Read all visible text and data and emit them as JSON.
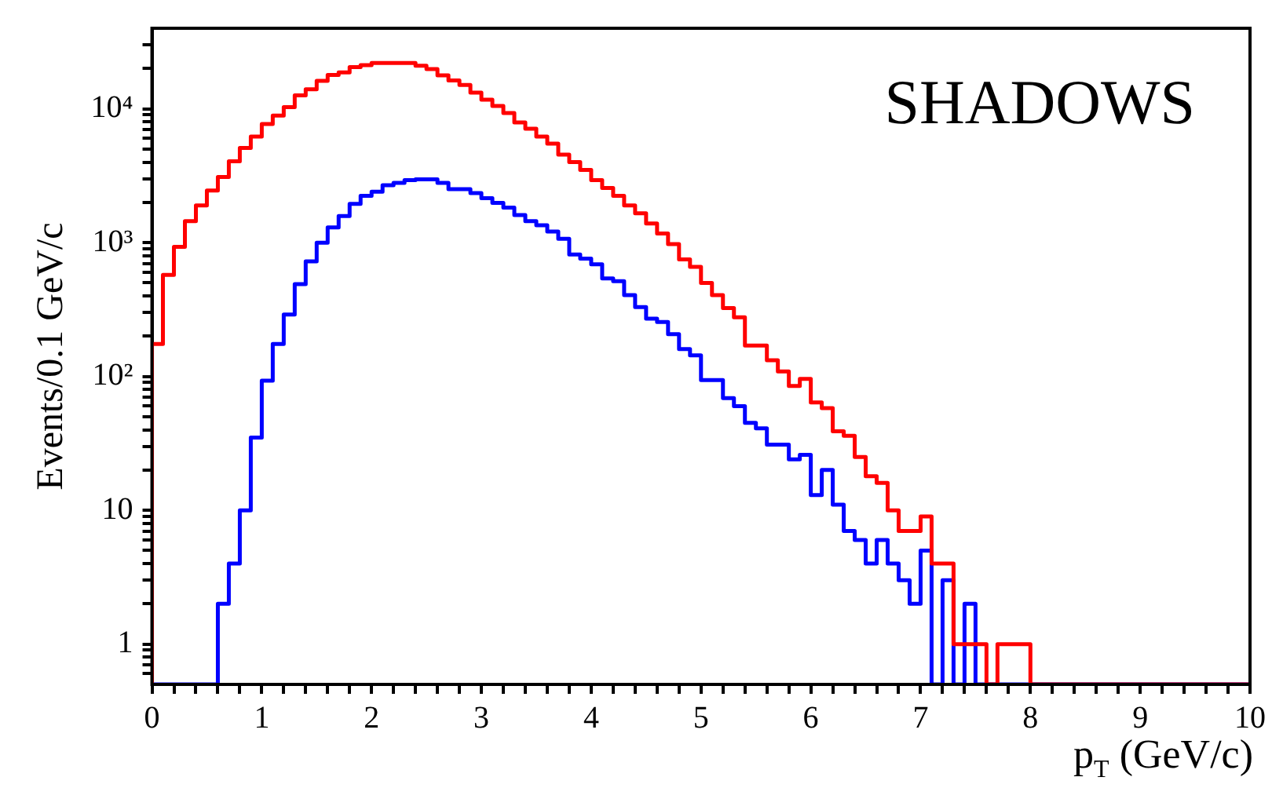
{
  "chart_data": {
    "type": "histogram",
    "xlabel": "p$_{T}$ (GeV/c)",
    "ylabel": "Events/0.1 GeV/c",
    "annotations": [
      "SHADOWS"
    ],
    "bins": [
      0,
      0.1,
      0.2,
      0.3,
      0.4,
      0.5,
      0.6,
      0.7,
      0.8,
      0.9,
      1,
      1.1,
      1.2,
      1.3,
      1.4,
      1.5,
      1.6,
      1.7,
      1.8,
      1.9,
      2,
      2.1,
      2.2,
      2.3,
      2.4,
      2.5,
      2.6,
      2.7,
      2.8,
      2.9,
      3,
      3.1,
      3.2,
      3.3,
      3.4,
      3.5,
      3.6,
      3.7,
      3.8,
      3.9,
      4,
      4.1,
      4.2,
      4.3,
      4.4,
      4.5,
      4.6,
      4.7,
      4.8,
      4.9,
      5,
      5.1,
      5.2,
      5.3,
      5.4,
      5.5,
      5.6,
      5.7,
      5.8,
      5.9,
      6,
      6.1,
      6.2,
      6.3,
      6.4,
      6.5,
      6.6,
      6.7,
      6.8,
      6.9,
      7,
      7.1,
      7.2,
      7.3,
      7.4,
      7.5,
      7.6,
      7.7,
      7.8,
      7.9,
      8,
      8.1,
      8.2,
      8.3,
      8.4,
      8.5,
      8.6,
      8.7,
      8.8,
      8.9,
      9,
      9.1,
      9.2,
      9.3,
      9.4,
      9.5,
      9.6,
      9.7,
      9.8,
      9.9,
      10
    ],
    "series": [
      {
        "color": "#ff0000",
        "values": [
          175,
          575,
          930,
          1450,
          1900,
          2450,
          3100,
          4050,
          5100,
          6200,
          7700,
          8900,
          10300,
          12600,
          14000,
          16200,
          17900,
          18700,
          20500,
          21200,
          22000,
          22000,
          22000,
          22000,
          21000,
          19800,
          17800,
          16300,
          15100,
          13200,
          11700,
          10500,
          9300,
          7900,
          7100,
          6200,
          5500,
          4550,
          4000,
          3500,
          2930,
          2560,
          2240,
          1900,
          1660,
          1390,
          1170,
          975,
          750,
          660,
          500,
          405,
          325,
          277,
          170,
          170,
          132,
          109,
          85,
          96,
          64,
          58,
          39,
          36,
          25,
          18,
          16,
          10,
          7,
          7,
          9,
          4,
          4,
          1,
          1,
          1,
          null,
          1,
          1,
          1,
          null,
          null,
          null,
          null,
          null,
          null,
          null,
          null,
          null,
          null,
          null,
          null,
          null,
          null,
          null,
          null,
          null,
          null,
          null,
          null
        ]
      },
      {
        "color": "#0000ff",
        "values": [
          null,
          null,
          null,
          null,
          null,
          null,
          2,
          4,
          10,
          35,
          93,
          175,
          290,
          490,
          725,
          1000,
          1300,
          1580,
          1950,
          2240,
          2400,
          2690,
          2800,
          2930,
          2970,
          2970,
          2800,
          2510,
          2510,
          2350,
          2150,
          1980,
          1830,
          1610,
          1450,
          1350,
          1210,
          1070,
          815,
          760,
          690,
          540,
          515,
          405,
          330,
          270,
          255,
          207,
          160,
          144,
          94,
          94,
          69,
          60,
          45,
          41,
          31,
          31,
          24,
          26,
          13,
          20,
          11,
          7,
          6,
          4,
          6,
          4,
          3,
          2,
          5,
          null,
          3,
          null,
          2,
          null,
          null,
          null,
          null,
          null,
          null,
          null,
          null,
          null,
          null,
          null,
          null,
          null,
          null,
          null,
          null,
          null,
          null,
          null,
          null,
          null,
          null,
          null,
          null,
          null
        ]
      }
    ],
    "xlim": [
      0,
      10
    ],
    "xticks": [
      0,
      {
        "value": 0.2,
        "label": null
      },
      {
        "value": 0.4,
        "label": null
      },
      {
        "value": 0.6,
        "label": null
      },
      {
        "value": 0.8,
        "label": null
      },
      1,
      {
        "value": 1.2,
        "label": null
      },
      {
        "value": 1.4,
        "label": null
      },
      {
        "value": 1.6,
        "label": null
      },
      {
        "value": 1.8,
        "label": null
      },
      2,
      {
        "value": 2.2,
        "label": null
      },
      {
        "value": 2.4,
        "label": null
      },
      {
        "value": 2.6,
        "label": null
      },
      {
        "value": 2.8,
        "label": null
      },
      3,
      {
        "value": 3.2,
        "label": null
      },
      {
        "value": 3.4,
        "label": null
      },
      {
        "value": 3.6,
        "label": null
      },
      {
        "value": 3.8,
        "label": null
      },
      4,
      {
        "value": 4.2,
        "label": null
      },
      {
        "value": 4.4,
        "label": null
      },
      {
        "value": 4.6,
        "label": null
      },
      {
        "value": 4.8,
        "label": null
      },
      5,
      {
        "value": 5.2,
        "label": null
      },
      {
        "value": 5.4,
        "label": null
      },
      {
        "value": 5.6,
        "label": null
      },
      {
        "value": 5.8,
        "label": null
      },
      6,
      {
        "value": 6.2,
        "label": null
      },
      {
        "value": 6.4,
        "label": null
      },
      {
        "value": 6.6,
        "label": null
      },
      {
        "value": 6.8,
        "label": null
      },
      7,
      {
        "value": 7.2,
        "label": null
      },
      {
        "value": 7.4,
        "label": null
      },
      {
        "value": 7.6,
        "label": null
      },
      {
        "value": 7.8,
        "label": null
      },
      8,
      {
        "value": 8.2,
        "label": null
      },
      {
        "value": 8.4,
        "label": null
      },
      {
        "value": 8.6,
        "label": null
      },
      {
        "value": 8.8,
        "label": null
      },
      9,
      {
        "value": 9.2,
        "label": null
      },
      {
        "value": 9.4,
        "label": null
      },
      {
        "value": 9.6,
        "label": null
      },
      {
        "value": 9.8,
        "label": null
      },
      10
    ],
    "ylim": [
      0.5,
      40000
    ],
    "yticks": [
      {
        "value": 0.6,
        "label": null
      },
      {
        "value": 0.7,
        "label": null
      },
      {
        "value": 0.8,
        "label": null
      },
      {
        "value": 0.9,
        "label": null
      },
      1,
      {
        "value": 2,
        "label": null
      },
      {
        "value": 3,
        "label": null
      },
      {
        "value": 4,
        "label": null
      },
      {
        "value": 5,
        "label": null
      },
      {
        "value": 6,
        "label": null
      },
      {
        "value": 7,
        "label": null
      },
      {
        "value": 8,
        "label": null
      },
      {
        "value": 9,
        "label": null
      },
      10,
      {
        "value": 20,
        "label": null
      },
      {
        "value": 30,
        "label": null
      },
      {
        "value": 40,
        "label": null
      },
      {
        "value": 50,
        "label": null
      },
      {
        "value": 60,
        "label": null
      },
      {
        "value": 70,
        "label": null
      },
      {
        "value": 80,
        "label": null
      },
      {
        "value": 90,
        "label": null
      },
      {
        "value": 100,
        "label": "10²"
      },
      {
        "value": 200,
        "label": null
      },
      {
        "value": 300,
        "label": null
      },
      {
        "value": 400,
        "label": null
      },
      {
        "value": 500,
        "label": null
      },
      {
        "value": 600,
        "label": null
      },
      {
        "value": 700,
        "label": null
      },
      {
        "value": 800,
        "label": null
      },
      {
        "value": 900,
        "label": null
      },
      {
        "value": 1000,
        "label": "10³"
      },
      {
        "value": 2000,
        "label": null
      },
      {
        "value": 3000,
        "label": null
      },
      {
        "value": 4000,
        "label": null
      },
      {
        "value": 5000,
        "label": null
      },
      {
        "value": 6000,
        "label": null
      },
      {
        "value": 7000,
        "label": null
      },
      {
        "value": 8000,
        "label": null
      },
      {
        "value": 9000,
        "label": null
      },
      {
        "value": 10000,
        "label": "10⁴"
      },
      {
        "value": 20000,
        "label": null
      },
      {
        "value": 30000,
        "label": null
      }
    ],
    "log": "y",
    "grid": false,
    "legend": false
  }
}
